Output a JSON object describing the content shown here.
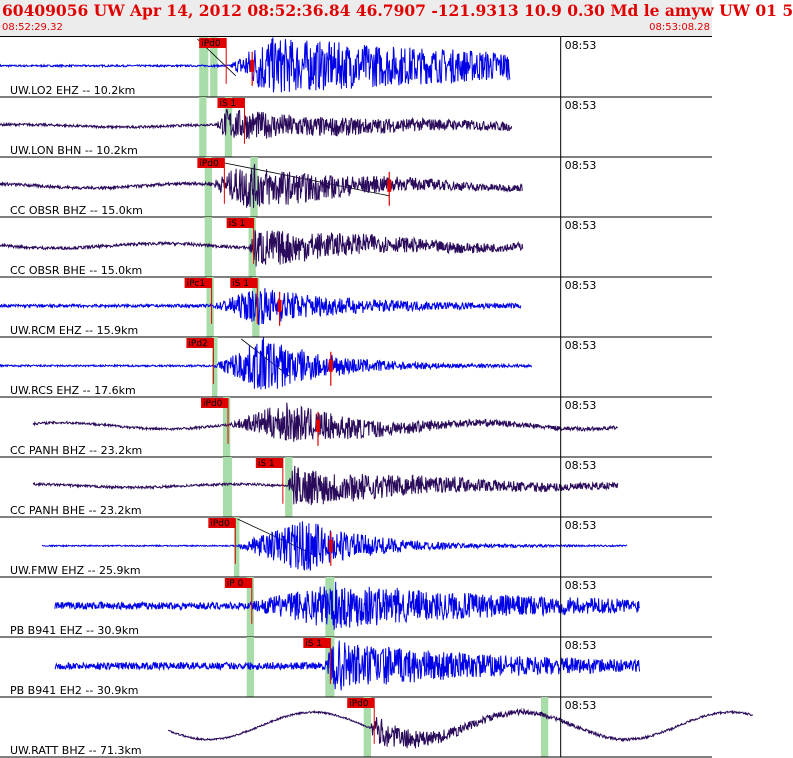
{
  "header": {
    "title": "60409056 UW Apr 14, 2012 08:52:36.84   46.7907 -121.9313 10.9 0.30 Md le amyw UW 01   5",
    "start_time": "08:52:29.32",
    "end_time": "08:53:08.28"
  },
  "colors": {
    "header_text": "#e00000",
    "header_bg": "#ececec",
    "trace_blue": "#0000e6",
    "trace_purple": "#2a0a5a",
    "pick_box": "#e00000",
    "pick_window": "#a8dca8"
  },
  "chart_data": {
    "type": "line",
    "title": "",
    "x_unit": "seconds after 08:52:29.32",
    "xlim": [
      0,
      38.96
    ],
    "minute_label": "08:53",
    "traces": [
      {
        "label": "UW.LO2 EHZ -- 10.2km",
        "color": "blue",
        "start": 0,
        "end": 27.9,
        "onset": 12.6,
        "peak": 14.5,
        "coda": 18,
        "amp": 0.95,
        "noise": 0.03,
        "drift": 0,
        "windows": [
          [
            10.9,
            11.4
          ],
          [
            11.5,
            11.9
          ]
        ],
        "picks": [
          {
            "label": "iPd0",
            "t": 10.9
          }
        ],
        "amp_marker": 13.8,
        "slant": [
          [
            10.8,
            12.9
          ]
        ]
      },
      {
        "label": "UW.LON BHN -- 10.2km",
        "color": "purple",
        "start": 0,
        "end": 28.0,
        "onset": 11.8,
        "peak": 12.4,
        "coda": 10,
        "amp": 0.5,
        "noise": 0.04,
        "drift": 0.12,
        "windows": [
          [
            10.9,
            11.3
          ],
          [
            12.3,
            12.7
          ]
        ],
        "picks": [
          {
            "label": "iS 1",
            "t": 11.9
          }
        ],
        "amp_marker": null,
        "slant": []
      },
      {
        "label": "CC OBSR BHZ -- 15.0km",
        "color": "purple",
        "start": 0,
        "end": 28.6,
        "onset": 11.5,
        "peak": 13.5,
        "coda": 6,
        "amp": 0.75,
        "noise": 0.05,
        "drift": 0.2,
        "windows": [
          [
            11.2,
            11.6
          ],
          [
            13.7,
            14.1
          ]
        ],
        "picks": [
          {
            "label": "iPd0",
            "t": 10.8
          }
        ],
        "amp_marker": 21.3,
        "slant": [
          [
            11.2,
            21.3
          ]
        ]
      },
      {
        "label": "CC OBSR BHE -- 15.0km",
        "color": "purple",
        "start": 0,
        "end": 28.6,
        "onset": 13.6,
        "peak": 14.0,
        "coda": 7,
        "amp": 0.65,
        "noise": 0.05,
        "drift": 0.22,
        "windows": [
          [
            11.2,
            11.6
          ],
          [
            13.6,
            14.0
          ]
        ],
        "picks": [
          {
            "label": "iS 1",
            "t": 12.4
          }
        ],
        "amp_marker": null,
        "slant": []
      },
      {
        "label": "UW.RCM EHZ -- 15.9km",
        "color": "blue",
        "start": 0,
        "end": 28.5,
        "onset": 11.6,
        "peak": 14.2,
        "coda": 5,
        "amp": 0.6,
        "noise": 0.05,
        "drift": 0,
        "windows": [
          [
            11.3,
            11.7
          ],
          [
            13.8,
            14.2
          ]
        ],
        "picks": [
          {
            "label": "iPc1",
            "t": 10.1
          },
          {
            "label": "iS 1",
            "t": 12.6
          }
        ],
        "amp_marker": 15.3,
        "slant": []
      },
      {
        "label": "UW.RCS EHZ -- 17.6km",
        "color": "blue",
        "start": 0,
        "end": 29.1,
        "onset": 11.7,
        "peak": 14.5,
        "coda": 3.5,
        "amp": 0.95,
        "noise": 0.03,
        "drift": 0,
        "windows": [
          [
            11.6,
            11.9
          ]
        ],
        "picks": [
          {
            "label": "iPd2",
            "t": 10.2
          }
        ],
        "amp_marker": 18.1,
        "slant": [
          [
            13.2,
            15.8
          ]
        ]
      },
      {
        "label": "CC PANH BHZ -- 23.2km",
        "color": "purple",
        "start": 1.8,
        "end": 33.8,
        "onset": 12.5,
        "peak": 15.7,
        "coda": 5,
        "amp": 0.65,
        "noise": 0.04,
        "drift": 0.3,
        "windows": [
          [
            12.2,
            12.6
          ]
        ],
        "picks": [
          {
            "label": "iPd0",
            "t": 11.0
          }
        ],
        "amp_marker": 17.4,
        "slant": []
      },
      {
        "label": "CC PANH BHE -- 23.2km",
        "color": "purple",
        "start": 1.8,
        "end": 33.8,
        "onset": 15.7,
        "peak": 16.1,
        "coda": 8,
        "amp": 0.65,
        "noise": 0.04,
        "drift": 0.15,
        "windows": [
          [
            12.2,
            12.7
          ],
          [
            15.6,
            16.0
          ]
        ],
        "picks": [
          {
            "label": "iS 1",
            "t": 14.0
          }
        ],
        "amp_marker": null,
        "slant": []
      },
      {
        "label": "UW.FMW EHZ -- 25.9km",
        "color": "blue",
        "start": 2.3,
        "end": 34.3,
        "onset": 12.9,
        "peak": 16.6,
        "coda": 3.5,
        "amp": 0.9,
        "noise": 0.02,
        "drift": 0,
        "windows": [
          [
            12.8,
            13.1
          ]
        ],
        "picks": [
          {
            "label": "iPd0",
            "t": 11.4
          }
        ],
        "amp_marker": 18.1,
        "slant": [
          [
            13.0,
            17.3
          ]
        ]
      },
      {
        "label": "PB B941 EHZ -- 30.9km",
        "color": "blue",
        "start": 3.0,
        "end": 35.0,
        "onset": 13.6,
        "peak": 18.3,
        "coda": 9,
        "amp": 0.7,
        "noise": 0.12,
        "drift": 0,
        "windows": [
          [
            13.5,
            13.9
          ],
          [
            17.8,
            18.3
          ]
        ],
        "picks": [
          {
            "label": "iP 0",
            "t": 12.3
          }
        ],
        "amp_marker": null,
        "slant": []
      },
      {
        "label": "PB B941 EH2 -- 30.9km",
        "color": "blue",
        "start": 3.0,
        "end": 35.0,
        "onset": 17.8,
        "peak": 18.3,
        "coda": 8,
        "amp": 0.75,
        "noise": 0.12,
        "drift": 0,
        "windows": [
          [
            13.5,
            13.9
          ],
          [
            17.8,
            18.3
          ]
        ],
        "picks": [
          {
            "label": "iS 1",
            "t": 16.6
          }
        ],
        "amp_marker": null,
        "slant": []
      },
      {
        "label": "UW.RATT BHZ -- 71.3km",
        "color": "purple",
        "start": 9.2,
        "end": 41.2,
        "onset": 20.2,
        "peak": 20.6,
        "coda": 4,
        "amp": 0.45,
        "noise": 0.03,
        "drift": 1.3,
        "windows": [
          [
            19.9,
            20.3
          ],
          [
            29.6,
            30.0
          ]
        ],
        "picks": [
          {
            "label": "iPd0",
            "t": 19.0
          }
        ],
        "amp_marker": null,
        "slant": []
      }
    ]
  }
}
